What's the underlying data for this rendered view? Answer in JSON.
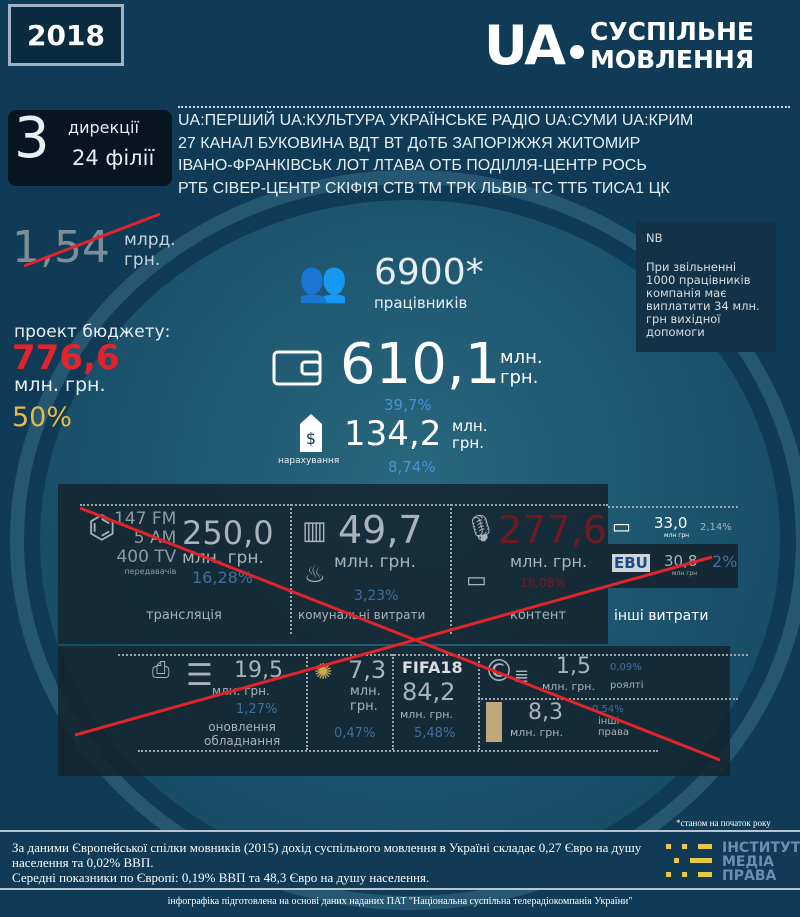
{
  "year": "2018",
  "logo": {
    "ua": "UA",
    "line1": "СУСПІЛЬНЕ",
    "line2": "МОВЛЕННЯ"
  },
  "directorates": {
    "count": "3",
    "count_label": "дирекції",
    "branches": "24 філії"
  },
  "channels": [
    "UA:ПЕРШИЙ   UA:КУЛЬТУРА   УКРАЇНСЬКЕ РАДІО   UA:СУМИ  UA:КРИМ",
    "27 КАНАЛ   БУКОВИНА  ВДТ  ВТ   ДоТБ   ЗАПОРІЖЖЯ   ЖИТОМИР",
    "ІВАНО-ФРАНКІВСЬК   ЛОТ   ЛТАВА   ОТБ   ПОДІЛЛЯ-ЦЕНТР   РОСЬ",
    "РТБ  СІВЕР-ЦЕНТР  СКІФІЯ  СТВ  ТМ  ТРК ЛЬВІВ  ТС  ТТБ  ТИСА1  ЦК"
  ],
  "old_budget": {
    "value": "1,54",
    "unit1": "млрд.",
    "unit2": "грн."
  },
  "project_budget": {
    "label": "проект бюджету:",
    "value": "776,6",
    "unit": "млн. грн.",
    "percent": "50%"
  },
  "nb": {
    "title": "NB",
    "text": "При звільненні 1000 працівників компанія має виплатити 34 млн. грн вихідної допомоги"
  },
  "staff": {
    "value": "6900*",
    "label": "працівників"
  },
  "salary": {
    "value": "610,1",
    "unit1": "млн.",
    "unit2": "грн.",
    "percent": "39,7%"
  },
  "accruals": {
    "value": "134,2",
    "unit1": "млн.",
    "unit2": "грн.",
    "percent": "8,74%",
    "label": "нарахування"
  },
  "costs": {
    "broadcast": {
      "fm": "147 FM",
      "am": "5 AM",
      "tv": "400 TV",
      "tx": "передавачів",
      "value": "250,0",
      "unit": "млн. грн.",
      "percent": "16,28%",
      "label": "трансляція"
    },
    "utilities": {
      "value": "49,7",
      "unit": "млн. грн.",
      "percent": "3,23%",
      "label": "комунальні витрати"
    },
    "content": {
      "value": "277,6",
      "unit": "млн. грн.",
      "percent": "18,08%",
      "label": "контент"
    },
    "other": {
      "card_value": "33,0",
      "card_unit": "млн грн",
      "card_percent": "2,14%",
      "ebu": "EBU",
      "ebu_value": "30,8",
      "ebu_unit": "млн грн",
      "ebu_percent": "2%",
      "label": "інші витрати"
    },
    "equipment": {
      "value": "19,5",
      "unit": "млн. грн.",
      "percent": "1,27%",
      "label1": "оновлення",
      "label2": "обладнання"
    },
    "eurovision": {
      "value": "7,3",
      "unit1": "млн.",
      "unit2": "грн.",
      "percent": "0,47%"
    },
    "fifa": {
      "logo": "FIFA18",
      "value": "84,2",
      "unit": "млн. грн.",
      "percent": "5,48%"
    },
    "royalty": {
      "value": "1,5",
      "unit": "млн. грн.",
      "percent": "0,09%",
      "label": "роялті"
    },
    "rights": {
      "value": "8,3",
      "unit": "млн. грн.",
      "percent": "0,54%",
      "label1": "інші",
      "label2": "права"
    }
  },
  "footnote": "*станом на початок року",
  "footer": {
    "line1": "За даними Європейської спілки мовників (2015) дохід суспільного мовлення в Україні складає 0,27 Євро на душу населення та 0,02% ВВП.",
    "line2": "Середні показники по Європі: 0,19% ВВП та 48,3 Євро на душу населення."
  },
  "imp_logo": {
    "l1": "ІНСТИТУТ",
    "l2": "МЕДІА",
    "l3": "ПРАВА"
  },
  "credit": "інфографіка підготовлена на основі даних наданих ПАТ \"Національна суспільна телерадіокомпанія України\"",
  "colors": {
    "background": "#0f3b56",
    "accent_red": "#e0242b",
    "accent_yellow": "#e7b84a",
    "accent_blue": "#4a90d9"
  }
}
